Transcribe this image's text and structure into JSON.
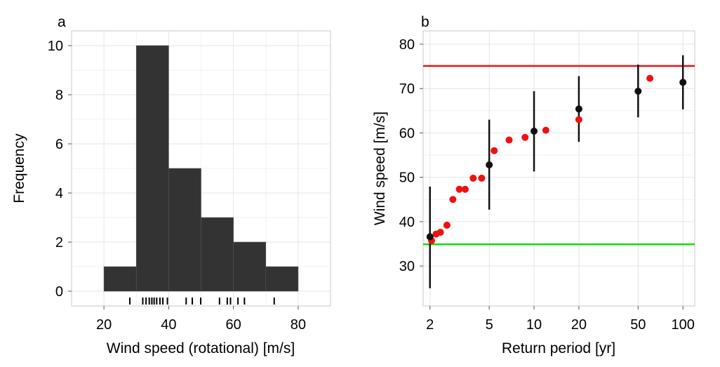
{
  "chart_data": [
    {
      "panel_label": "a",
      "type": "bar",
      "xlabel": "Wind speed (rotational) [m/s]",
      "ylabel": "Frequency",
      "xlim": [
        10,
        90
      ],
      "ylim": [
        -0.6,
        10.6
      ],
      "x_ticks": [
        20,
        40,
        60,
        80
      ],
      "y_ticks": [
        0,
        2,
        4,
        6,
        8,
        10
      ],
      "bin_width": 10,
      "bins": [
        {
          "start": 20,
          "end": 30,
          "count": 1
        },
        {
          "start": 30,
          "end": 40,
          "count": 10
        },
        {
          "start": 40,
          "end": 50,
          "count": 5
        },
        {
          "start": 50,
          "end": 60,
          "count": 3
        },
        {
          "start": 60,
          "end": 70,
          "count": 2
        },
        {
          "start": 70,
          "end": 80,
          "count": 1
        }
      ],
      "rug": [
        28,
        32,
        33,
        34,
        34.8,
        35.5,
        36.3,
        37.3,
        38.2,
        39.6,
        45.4,
        47.3,
        49.9,
        55.7,
        58.1,
        59.1,
        61.4,
        63.4,
        72.6
      ],
      "grid": true,
      "bar_color": "#333333"
    },
    {
      "panel_label": "b",
      "type": "scatter",
      "xlabel": "Return period [yr]",
      "ylabel": "Wind speed [m/s]",
      "x_scale": "log",
      "xlim": [
        1.8,
        120
      ],
      "ylim": [
        21,
        83
      ],
      "x_ticks": [
        2,
        5,
        10,
        20,
        50,
        100
      ],
      "y_ticks": [
        30,
        40,
        50,
        60,
        70,
        80
      ],
      "grid": true,
      "hlines": [
        {
          "y": 75.1,
          "color": "#ee1111"
        },
        {
          "y": 34.9,
          "color": "#11dd11"
        }
      ],
      "series": [
        {
          "color": "#111111",
          "points": [
            {
              "x": 2,
              "y": 36.6,
              "lo": 25.0,
              "hi": 47.9
            },
            {
              "x": 5,
              "y": 52.8,
              "lo": 42.7,
              "hi": 63.0
            },
            {
              "x": 10,
              "y": 60.4,
              "lo": 51.3,
              "hi": 69.4
            },
            {
              "x": 20,
              "y": 65.4,
              "lo": 58.0,
              "hi": 72.8
            },
            {
              "x": 50,
              "y": 69.4,
              "lo": 63.5,
              "hi": 75.4
            },
            {
              "x": 100,
              "y": 71.4,
              "lo": 65.3,
              "hi": 77.5
            }
          ]
        },
        {
          "color": "#ee1111",
          "points": [
            {
              "x": 2.05,
              "y": 35.7
            },
            {
              "x": 2.2,
              "y": 37.2
            },
            {
              "x": 2.35,
              "y": 37.6
            },
            {
              "x": 2.6,
              "y": 39.2
            },
            {
              "x": 2.85,
              "y": 45.0
            },
            {
              "x": 3.15,
              "y": 47.3
            },
            {
              "x": 3.45,
              "y": 47.3
            },
            {
              "x": 3.9,
              "y": 49.8
            },
            {
              "x": 4.45,
              "y": 49.8
            },
            {
              "x": 5.4,
              "y": 56.0
            },
            {
              "x": 6.8,
              "y": 58.4
            },
            {
              "x": 8.7,
              "y": 59.0
            },
            {
              "x": 12,
              "y": 60.6
            },
            {
              "x": 20,
              "y": 63.0
            },
            {
              "x": 60,
              "y": 72.3
            }
          ]
        }
      ]
    }
  ]
}
